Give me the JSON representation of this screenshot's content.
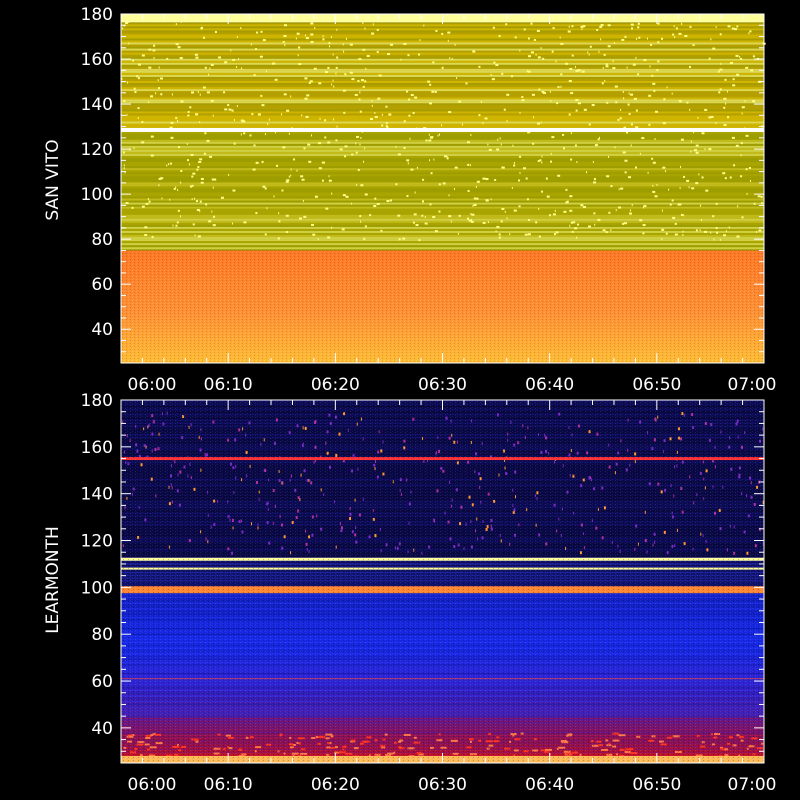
{
  "chart_data": [
    {
      "type": "heatmap",
      "ylabel": "SAN VITO",
      "xlim": [
        "06:00",
        "07:00"
      ],
      "ylim": [
        25,
        180
      ],
      "x_ticks": [
        "06:00",
        "06:10",
        "06:20",
        "06:30",
        "06:40",
        "06:50",
        "07:00"
      ],
      "y_ticks": [
        40,
        60,
        80,
        100,
        120,
        140,
        160,
        180
      ],
      "colors": {
        "low_band": "#ff7722",
        "low_band_bottom": "#ffbb33",
        "mid_band": "#a3a000",
        "high_band": "#c0a800",
        "bright_line": "#ffffff",
        "speckle": "#ffff88"
      },
      "bands": [
        {
          "from": 25,
          "to": 75,
          "color": "orange"
        },
        {
          "from": 75,
          "to": 180,
          "color": "olive-yellow"
        }
      ],
      "bright_lines_at": [
        128.5,
        177
      ]
    },
    {
      "type": "heatmap",
      "ylabel": "LEARMONTH",
      "xlim": [
        "06:00",
        "07:00"
      ],
      "ylim": [
        25,
        180
      ],
      "x_ticks": [
        "06:00",
        "06:10",
        "06:20",
        "06:30",
        "06:40",
        "06:50",
        "07:00"
      ],
      "y_ticks": [
        40,
        60,
        80,
        100,
        120,
        140,
        160,
        180
      ],
      "colors": {
        "upper_bg": "#0a0a4a",
        "mid_bg": "#1428e6",
        "low_bg": "#4a1aa0",
        "bottom": "#dd1111",
        "line_orange": "#ff8833",
        "line_yellow": "#ffff99",
        "line_red": "#ff3333",
        "speckle": "#ff9933"
      },
      "bright_lines_at": [
        99,
        108,
        112,
        155
      ]
    }
  ]
}
